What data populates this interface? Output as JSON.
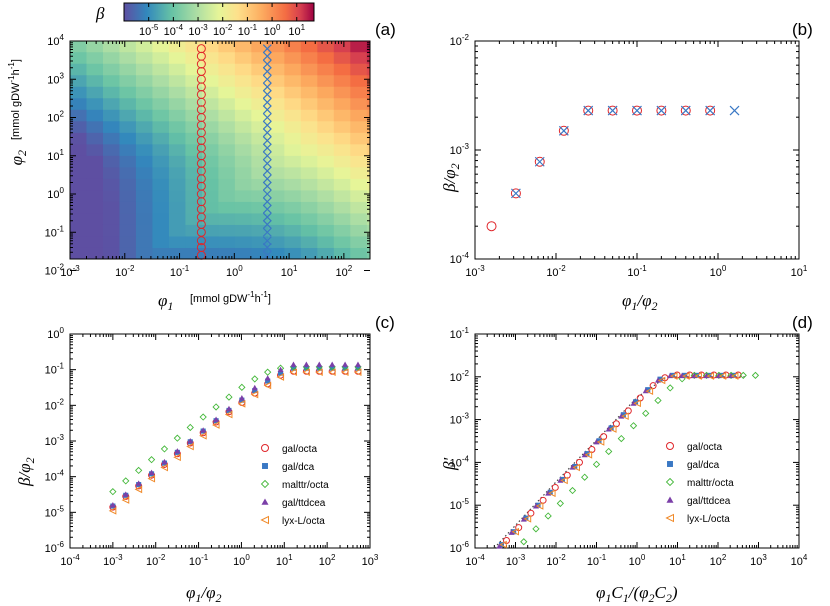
{
  "colors": {
    "red": "#e0262b",
    "blue": "#3a78c4",
    "green": "#44b83a",
    "purple": "#7b3fa8",
    "orange": "#f08a2a",
    "dotted": "#444444"
  },
  "heatmap": {
    "label": "(a)",
    "colorbar_label": "β",
    "colorbar_ticks": [
      "10",
      "10",
      "10",
      "10",
      "10",
      "10",
      "10"
    ],
    "colorbar_exps": [
      "-5",
      "-4",
      "-3",
      "-2",
      "-1",
      "0",
      "1"
    ],
    "xlabel": "φ",
    "xlabel_sub": "1",
    "xlabel_unit": "[mmol gDW",
    "ylabel": "φ",
    "ylabel_sub": "2",
    "ylabel_unit": "[mmol gDW",
    "x_ticks_base": [
      "10",
      "10",
      "10",
      "10",
      "10",
      "10"
    ],
    "x_ticks_exp": [
      "-3",
      "-2",
      "-1",
      "0",
      "1",
      "2"
    ],
    "y_ticks_base": [
      "10",
      "10",
      "10",
      "10",
      "10",
      "10"
    ],
    "y_ticks_exp": [
      "-1",
      "0",
      "1",
      "2",
      "3",
      "4"
    ]
  },
  "chart_data": [
    {
      "type": "heatmap",
      "panel": "(a)",
      "xlabel": "φ1 [mmol gDW-1h-1]",
      "ylabel": "φ2 [mmol gDW-1h-1]",
      "xlim": [
        0.001,
        300
      ],
      "ylim": [
        0.02,
        10000
      ],
      "x_log": true,
      "y_log": true,
      "color_scale": "log",
      "clim": [
        1e-06,
        50
      ],
      "colorbar_label": "β",
      "grid_x": [
        0.001,
        0.002,
        0.004,
        0.008,
        0.016,
        0.032,
        0.064,
        0.128,
        0.256,
        0.512,
        1.024,
        2.048,
        4.096,
        8.192,
        16.384,
        32.768,
        65.536,
        131.072,
        262.144
      ],
      "grid_y": [
        0.02,
        0.04,
        0.08,
        0.16,
        0.32,
        0.64,
        1.28,
        2.56,
        5.12,
        10.24,
        20.48,
        40.96,
        81.92,
        163.84,
        327.68,
        655.36,
        1310.72,
        2621.44,
        5242.88,
        10485.76
      ],
      "value_model": "beta = min(phi1, phi2) * 0.0002 + phi1 * phi2 * 0.00002",
      "series": [
        {
          "name": "",
          "marker": "circle",
          "color": "red",
          "x": 0.25,
          "y": [
            0.025,
            0.04,
            0.06,
            0.1,
            0.16,
            0.25,
            0.4,
            0.63,
            1,
            1.6,
            2.5,
            4,
            6.3,
            10,
            16,
            25,
            40,
            63,
            100,
            160,
            250,
            400,
            630,
            1000,
            1600,
            2500,
            4000,
            6300
          ]
        },
        {
          "name": "",
          "marker": "x",
          "color": "blue",
          "x": 4,
          "y": [
            0.025,
            0.04,
            0.06,
            0.1,
            0.16,
            0.25,
            0.4,
            0.63,
            1,
            1.6,
            2.5,
            4,
            6.3,
            10,
            16,
            25,
            40,
            63,
            100,
            160,
            250,
            400,
            630,
            1000,
            1600,
            2500,
            4000,
            6300
          ]
        }
      ]
    },
    {
      "type": "scatter",
      "panel": "(b)",
      "xlabel": "φ1/φ2",
      "ylabel": "β/φ2",
      "xlim": [
        0.001,
        10
      ],
      "ylim": [
        0.0001,
        0.01
      ],
      "x_log": true,
      "y_log": true,
      "x_ticks": [
        "10^-3",
        "10^-2",
        "10^-1",
        "10^0",
        "10^1"
      ],
      "y_ticks": [
        "10^-4",
        "10^-3",
        "10^-2"
      ],
      "series": [
        {
          "name": "",
          "marker": "circle",
          "color": "red",
          "x": [
            0.0016,
            0.0032,
            0.0063,
            0.0125,
            0.025,
            0.05,
            0.1,
            0.2,
            0.4,
            0.8
          ],
          "y": [
            0.0002,
            0.0004,
            0.00078,
            0.0015,
            0.0023,
            0.0023,
            0.0023,
            0.0023,
            0.0023,
            0.0023
          ]
        },
        {
          "name": "",
          "marker": "x",
          "color": "blue",
          "x": [
            0.0032,
            0.0063,
            0.0125,
            0.025,
            0.05,
            0.1,
            0.2,
            0.4,
            0.8,
            1.6
          ],
          "y": [
            0.0004,
            0.00078,
            0.0015,
            0.0023,
            0.0023,
            0.0023,
            0.0023,
            0.0023,
            0.0023,
            0.0023
          ]
        }
      ]
    },
    {
      "type": "scatter",
      "panel": "(c)",
      "xlabel": "φ1/φ2",
      "ylabel": "β/φ2",
      "xlim": [
        0.0001,
        1000
      ],
      "ylim": [
        1e-06,
        1
      ],
      "x_log": true,
      "y_log": true,
      "x_ticks": [
        "10^-4",
        "10^-3",
        "10^-2",
        "10^-1",
        "10^0",
        "10^1",
        "10^2",
        "10^3"
      ],
      "y_ticks": [
        "10^-6",
        "10^-5",
        "10^-4",
        "10^-3",
        "10^-2",
        "10^-1",
        "10^0"
      ],
      "x": [
        0.001,
        0.002,
        0.004,
        0.008,
        0.016,
        0.032,
        0.064,
        0.128,
        0.256,
        0.512,
        1.024,
        2.048,
        4.096,
        8.192,
        16.38,
        32.77,
        65.54,
        131.1,
        262.1,
        524.3
      ],
      "legend": "lower-right",
      "series": [
        {
          "name": "gal/octa",
          "marker": "circle",
          "color": "red",
          "y": [
            1.4e-05,
            2.8e-05,
            5.5e-05,
            0.00011,
            0.00022,
            0.00044,
            0.00088,
            0.0017,
            0.0034,
            0.0066,
            0.012,
            0.022,
            0.04,
            0.07,
            0.09,
            0.09,
            0.09,
            0.09,
            0.09,
            0.09
          ]
        },
        {
          "name": "gal/dca",
          "marker": "square",
          "color": "blue",
          "y": [
            1.5e-05,
            3e-05,
            6e-05,
            0.00012,
            0.00024,
            0.00048,
            0.00095,
            0.0019,
            0.0037,
            0.0072,
            0.014,
            0.026,
            0.048,
            0.08,
            0.11,
            0.11,
            0.11,
            0.11,
            0.11,
            0.11
          ]
        },
        {
          "name": "malttr/octa",
          "marker": "diamond",
          "color": "green",
          "y": [
            3.8e-05,
            7.6e-05,
            0.00015,
            0.0003,
            0.0006,
            0.0012,
            0.0024,
            0.0047,
            0.009,
            0.017,
            0.032,
            0.055,
            0.085,
            0.11,
            0.12,
            0.12,
            0.12,
            0.12,
            0.12,
            0.12
          ]
        },
        {
          "name": "gal/ttdcea",
          "marker": "triangle",
          "color": "purple",
          "y": [
            1.6e-05,
            3.2e-05,
            6.5e-05,
            0.00013,
            0.00026,
            0.00052,
            0.001,
            0.002,
            0.004,
            0.008,
            0.016,
            0.031,
            0.058,
            0.1,
            0.14,
            0.14,
            0.14,
            0.14,
            0.14,
            0.14
          ]
        },
        {
          "name": "lyx-L/octa",
          "marker": "tri-left",
          "color": "orange",
          "y": [
            1.1e-05,
            2.2e-05,
            4.4e-05,
            8.8e-05,
            0.00018,
            0.00035,
            0.0007,
            0.0014,
            0.0028,
            0.0055,
            0.011,
            0.02,
            0.036,
            0.062,
            0.085,
            0.085,
            0.085,
            0.085,
            0.085,
            0.085
          ]
        }
      ]
    },
    {
      "type": "scatter",
      "panel": "(d)",
      "xlabel": "φ1C1/(φ2C2)",
      "ylabel": "β'",
      "xlim": [
        0.0001,
        10000
      ],
      "ylim": [
        1e-06,
        0.1
      ],
      "x_log": true,
      "y_log": true,
      "x_ticks": [
        "10^-4",
        "10^-3",
        "10^-2",
        "10^-1",
        "10^0",
        "10^1",
        "10^2",
        "10^3",
        "10^4"
      ],
      "y_ticks": [
        "10^-6",
        "10^-5",
        "10^-4",
        "10^-3",
        "10^-2",
        "10^-1"
      ],
      "legend": "lower-right",
      "reference_line": {
        "style": "dotted",
        "x": [
          0.0003,
          0.01,
          0.1,
          1,
          5,
          10,
          500
        ],
        "y": [
          1e-06,
          3.5e-05,
          0.00033,
          0.0033,
          0.0095,
          0.01,
          0.01
        ]
      },
      "series": [
        {
          "name": "gal/octa",
          "marker": "circle",
          "color": "red",
          "x": [
            0.0006,
            0.0012,
            0.0024,
            0.0048,
            0.0096,
            0.019,
            0.038,
            0.077,
            0.15,
            0.31,
            0.61,
            1.2,
            2.5,
            4.9,
            9.8,
            20,
            39,
            79,
            157,
            315
          ],
          "y": [
            1.5e-06,
            3e-06,
            6.5e-06,
            1.3e-05,
            2.6e-05,
            5e-05,
            0.0001,
            0.0002,
            0.0004,
            0.0008,
            0.0016,
            0.0032,
            0.0062,
            0.0095,
            0.011,
            0.011,
            0.011,
            0.011,
            0.011,
            0.011
          ]
        },
        {
          "name": "gal/dca",
          "marker": "square",
          "color": "blue",
          "x": [
            0.00045,
            0.0009,
            0.0018,
            0.0036,
            0.0072,
            0.0144,
            0.029,
            0.058,
            0.115,
            0.23,
            0.46,
            0.92,
            1.84,
            3.7,
            7.4,
            14.7,
            29.5,
            59,
            118,
            236
          ],
          "y": [
            1.2e-06,
            2.4e-06,
            5e-06,
            1e-05,
            2e-05,
            4e-05,
            8e-05,
            0.00016,
            0.00032,
            0.00064,
            0.0013,
            0.0026,
            0.005,
            0.0088,
            0.0108,
            0.0108,
            0.0108,
            0.0108,
            0.0108,
            0.0108
          ]
        },
        {
          "name": "malttr/octa",
          "marker": "diamond",
          "color": "green",
          "x": [
            0.0016,
            0.0032,
            0.0064,
            0.0128,
            0.0256,
            0.051,
            0.1,
            0.2,
            0.41,
            0.82,
            1.64,
            3.3,
            6.6,
            13,
            26,
            52,
            105,
            210,
            420,
            840
          ],
          "y": [
            1.4e-06,
            2.8e-06,
            5.6e-06,
            1.1e-05,
            2.2e-05,
            4.5e-05,
            9e-05,
            0.00018,
            0.00036,
            0.00072,
            0.0014,
            0.0028,
            0.0055,
            0.009,
            0.0108,
            0.0108,
            0.0108,
            0.0108,
            0.0108,
            0.0108
          ]
        },
        {
          "name": "gal/ttdcea",
          "marker": "triangle",
          "color": "purple",
          "x": [
            0.0004,
            0.0008,
            0.0016,
            0.0032,
            0.0064,
            0.0128,
            0.0256,
            0.051,
            0.1,
            0.2,
            0.41,
            0.82,
            1.64,
            3.3,
            6.6,
            13,
            26,
            52,
            105,
            210
          ],
          "y": [
            1.1e-06,
            2.3e-06,
            4.7e-06,
            9.5e-06,
            1.9e-05,
            3.8e-05,
            7.7e-05,
            0.00015,
            0.0003,
            0.0006,
            0.0012,
            0.0024,
            0.0047,
            0.0083,
            0.0106,
            0.0106,
            0.0106,
            0.0106,
            0.0106,
            0.0106
          ]
        },
        {
          "name": "lyx-L/octa",
          "marker": "tri-left",
          "color": "orange",
          "x": [
            0.0005,
            0.001,
            0.002,
            0.004,
            0.008,
            0.016,
            0.032,
            0.064,
            0.128,
            0.256,
            0.512,
            1.024,
            2.048,
            4.1,
            8.2,
            16.4,
            32.8,
            65.5,
            131,
            262
          ],
          "y": [
            1.2e-06,
            2.4e-06,
            4.8e-06,
            9.6e-06,
            1.9e-05,
            3.8e-05,
            7.6e-05,
            0.00015,
            0.0003,
            0.0006,
            0.0012,
            0.0024,
            0.0046,
            0.0082,
            0.0104,
            0.0104,
            0.0104,
            0.0104,
            0.0104,
            0.0104
          ]
        }
      ]
    }
  ],
  "panels": {
    "b": {
      "label": "(b)",
      "xlabel": "φ",
      "xlabel_tail": "/φ",
      "xsub1": "1",
      "xsub2": "2",
      "ylabel": "β/φ",
      "ysub": "2"
    },
    "c": {
      "label": "(c)",
      "xlabel": "φ",
      "xlabel_tail": "/φ",
      "xsub1": "1",
      "xsub2": "2",
      "ylabel": "β/φ",
      "ysub": "2"
    },
    "d": {
      "label": "(d)",
      "xlabel": "φ",
      "xsub1": "1",
      "xC": "C",
      "xsub1b": "1",
      "xmid": "/(φ",
      "xsub2": "2",
      "xC2": "C",
      "xsub2b": "2",
      "xend": ")",
      "ylabel": "β'"
    }
  },
  "legend": [
    "gal/octa",
    "gal/dca",
    "malttr/octa",
    "gal/ttdcea",
    "lyx-L/octa"
  ]
}
